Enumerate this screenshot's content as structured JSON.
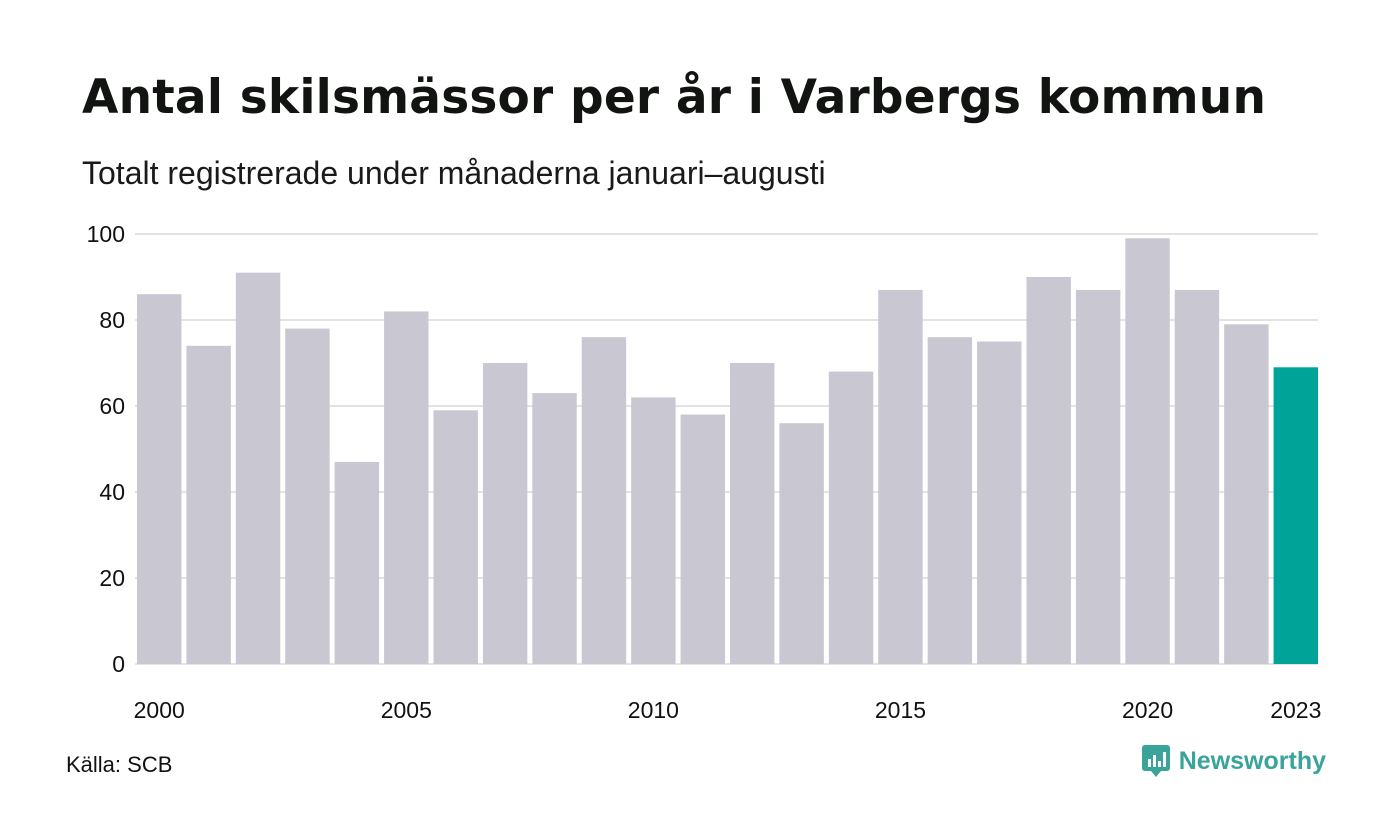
{
  "title": "Antal skilsmässor per år i Varbergs kommun",
  "subtitle": "Totalt registrerade under månaderna januari–augusti",
  "source": "Källa: SCB",
  "brand": {
    "name": "Newsworthy",
    "icon": "newsworthy-logo-icon",
    "color": "#3aa39a"
  },
  "colors": {
    "bar": "#c8c7d2",
    "highlight": "#00a398",
    "grid": "#e3e3e3",
    "text": "#111111"
  },
  "chart_data": {
    "type": "bar",
    "title": "Antal skilsmässor per år i Varbergs kommun",
    "subtitle": "Totalt registrerade under månaderna januari–augusti",
    "xlabel": "",
    "ylabel": "",
    "ylim": [
      0,
      100
    ],
    "yticks": [
      0,
      20,
      40,
      60,
      80,
      100
    ],
    "xtick_labels": [
      "2000",
      "2005",
      "2010",
      "2015",
      "2020",
      "2023"
    ],
    "grid": true,
    "legend": "none",
    "highlight_category": "2023",
    "categories": [
      "2000",
      "2001",
      "2002",
      "2003",
      "2004",
      "2005",
      "2006",
      "2007",
      "2008",
      "2009",
      "2010",
      "2011",
      "2012",
      "2013",
      "2014",
      "2015",
      "2016",
      "2017",
      "2018",
      "2019",
      "2020",
      "2021",
      "2022",
      "2023"
    ],
    "values": [
      86,
      74,
      91,
      78,
      47,
      82,
      59,
      70,
      63,
      76,
      62,
      58,
      70,
      56,
      68,
      87,
      76,
      75,
      90,
      87,
      99,
      87,
      79,
      69
    ]
  }
}
